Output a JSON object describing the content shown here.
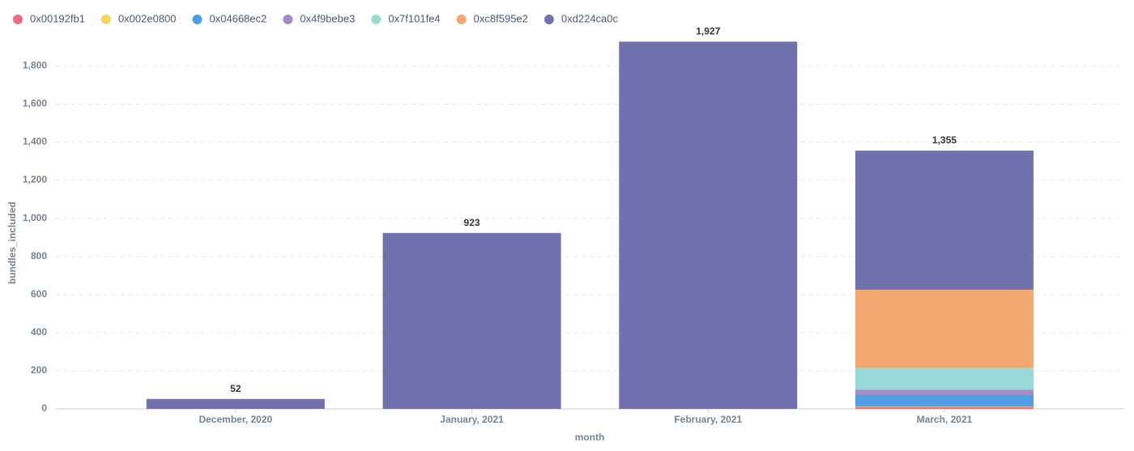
{
  "chart_data": {
    "type": "stacked_bar",
    "x_label": "month",
    "y_label": "bundles_included",
    "categories": [
      "December, 2020",
      "January, 2021",
      "February, 2021",
      "March, 2021"
    ],
    "series": [
      {
        "name": "0x00192fb1",
        "color": "#ed6e7e",
        "values": [
          0,
          0,
          0,
          10
        ]
      },
      {
        "name": "0x002e0800",
        "color": "#f9d45c",
        "values": [
          0,
          0,
          0,
          2
        ]
      },
      {
        "name": "0x04668ec2",
        "color": "#509ee3",
        "values": [
          0,
          0,
          0,
          60
        ]
      },
      {
        "name": "0x4f9bebe3",
        "color": "#a989c5",
        "values": [
          0,
          0,
          0,
          28
        ]
      },
      {
        "name": "0x7f101fe4",
        "color": "#98d9d9",
        "values": [
          0,
          0,
          0,
          115
        ]
      },
      {
        "name": "0xc8f595e2",
        "color": "#f2a86f",
        "values": [
          0,
          0,
          0,
          410
        ]
      },
      {
        "name": "0xd224ca0c",
        "color": "#7172ad",
        "values": [
          52,
          923,
          1927,
          730
        ]
      }
    ],
    "totals": [
      {
        "value": 52,
        "label": "52"
      },
      {
        "value": 923,
        "label": "923"
      },
      {
        "value": 1927,
        "label": "1,927"
      },
      {
        "value": 1355,
        "label": "1,355"
      }
    ],
    "ylim": [
      0,
      1950
    ],
    "yticks": [
      0,
      200,
      400,
      600,
      800,
      {
        "value": 1000,
        "label": "1,000"
      },
      {
        "value": 1200,
        "label": "1,200"
      },
      {
        "value": 1400,
        "label": "1,400"
      },
      {
        "value": 1600,
        "label": "1,600"
      },
      {
        "value": 1800,
        "label": "1,800"
      }
    ],
    "grid": true
  }
}
